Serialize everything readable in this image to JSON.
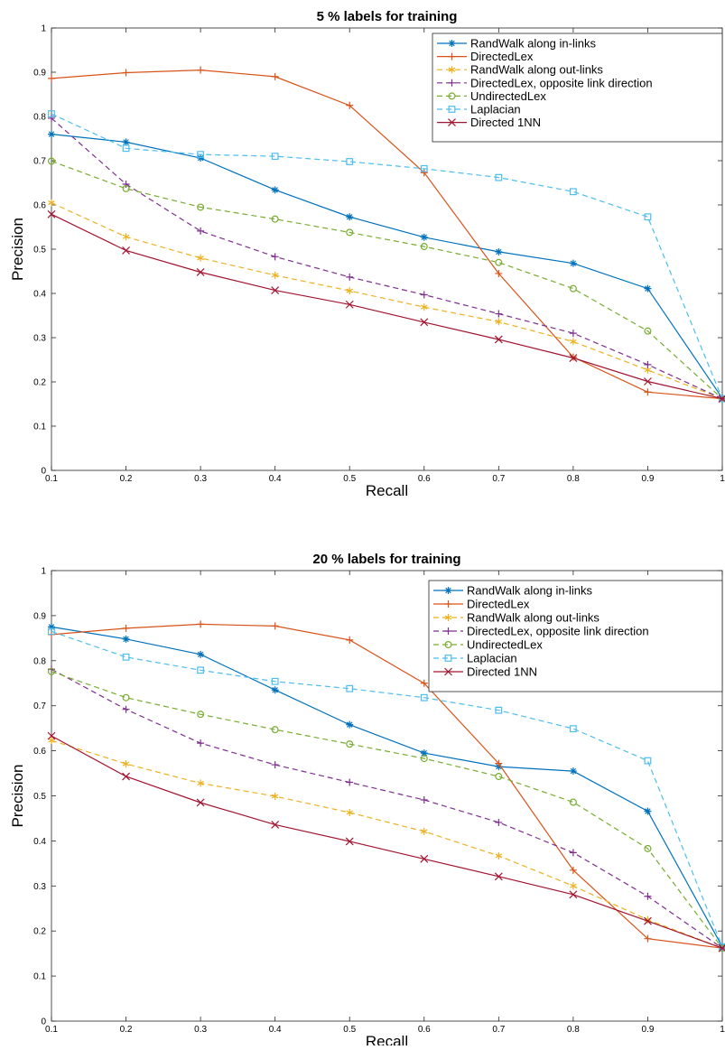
{
  "chart_data": [
    {
      "type": "line",
      "title": "5 % labels for training",
      "xlabel": "Recall",
      "ylabel": "Precision",
      "xlim": [
        0.1,
        1
      ],
      "ylim": [
        0,
        1
      ],
      "xticks": [
        "0.1",
        "0.2",
        "0.3",
        "0.4",
        "0.5",
        "0.6",
        "0.7",
        "0.8",
        "0.9",
        "1"
      ],
      "yticks": [
        "0",
        "0.1",
        "0.2",
        "0.3",
        "0.4",
        "0.5",
        "0.6",
        "0.7",
        "0.8",
        "0.9",
        "1"
      ],
      "grid": false,
      "legend_position": "top-right",
      "x": [
        0.1,
        0.2,
        0.3,
        0.4,
        0.5,
        0.6,
        0.7,
        0.8,
        0.9,
        1.0
      ],
      "series": [
        {
          "name": "RandWalk along in-links",
          "color": "#0072BD",
          "marker": "asterisk",
          "dash": "solid",
          "values": [
            0.76,
            0.742,
            0.706,
            0.634,
            0.573,
            0.527,
            0.494,
            0.468,
            0.411,
            0.163
          ]
        },
        {
          "name": "DirectedLex",
          "color": "#D95319",
          "marker": "plus",
          "dash": "solid",
          "values": [
            0.886,
            0.899,
            0.905,
            0.89,
            0.825,
            0.673,
            0.445,
            0.256,
            0.177,
            0.162
          ]
        },
        {
          "name": "RandWalk along out-links",
          "color": "#EDB120",
          "marker": "star",
          "dash": "dashed",
          "values": [
            0.605,
            0.528,
            0.48,
            0.441,
            0.406,
            0.369,
            0.336,
            0.291,
            0.227,
            0.162
          ]
        },
        {
          "name": "DirectedLex, opposite link direction",
          "color": "#7E2F8E",
          "marker": "plus",
          "dash": "dashed",
          "values": [
            0.796,
            0.647,
            0.541,
            0.483,
            0.437,
            0.397,
            0.354,
            0.31,
            0.239,
            0.162
          ]
        },
        {
          "name": "UndirectedLex",
          "color": "#77AC30",
          "marker": "circle",
          "dash": "dashed",
          "values": [
            0.699,
            0.637,
            0.595,
            0.568,
            0.538,
            0.506,
            0.47,
            0.411,
            0.315,
            0.162
          ]
        },
        {
          "name": "Laplacian",
          "color": "#4DBEEE",
          "marker": "square",
          "dash": "dashed",
          "values": [
            0.806,
            0.728,
            0.714,
            0.71,
            0.698,
            0.682,
            0.662,
            0.63,
            0.573,
            0.162
          ]
        },
        {
          "name": "Directed 1NN",
          "color": "#A2142F",
          "marker": "x",
          "dash": "solid",
          "values": [
            0.579,
            0.497,
            0.448,
            0.407,
            0.375,
            0.335,
            0.296,
            0.254,
            0.201,
            0.162
          ]
        }
      ]
    },
    {
      "type": "line",
      "title": "20 % labels for training",
      "xlabel": "Recall",
      "ylabel": "Precision",
      "xlim": [
        0.1,
        1
      ],
      "ylim": [
        0,
        1
      ],
      "xticks": [
        "0.1",
        "0.2",
        "0.3",
        "0.4",
        "0.5",
        "0.6",
        "0.7",
        "0.8",
        "0.9",
        "1"
      ],
      "yticks": [
        "0",
        "0.1",
        "0.2",
        "0.3",
        "0.4",
        "0.5",
        "0.6",
        "0.7",
        "0.8",
        "0.9",
        "1"
      ],
      "grid": false,
      "legend_position": "top-right",
      "x": [
        0.1,
        0.2,
        0.3,
        0.4,
        0.5,
        0.6,
        0.7,
        0.8,
        0.9,
        1.0
      ],
      "series": [
        {
          "name": "RandWalk along in-links",
          "color": "#0072BD",
          "marker": "asterisk",
          "dash": "solid",
          "values": [
            0.875,
            0.848,
            0.814,
            0.735,
            0.658,
            0.595,
            0.565,
            0.555,
            0.466,
            0.165
          ]
        },
        {
          "name": "DirectedLex",
          "color": "#D95319",
          "marker": "plus",
          "dash": "solid",
          "values": [
            0.858,
            0.872,
            0.881,
            0.877,
            0.846,
            0.75,
            0.572,
            0.335,
            0.183,
            0.162
          ]
        },
        {
          "name": "RandWalk along out-links",
          "color": "#EDB120",
          "marker": "star",
          "dash": "dashed",
          "values": [
            0.623,
            0.571,
            0.528,
            0.499,
            0.463,
            0.421,
            0.367,
            0.3,
            0.225,
            0.162
          ]
        },
        {
          "name": "DirectedLex, opposite link direction",
          "color": "#7E2F8E",
          "marker": "plus",
          "dash": "dashed",
          "values": [
            0.781,
            0.692,
            0.617,
            0.569,
            0.53,
            0.491,
            0.441,
            0.374,
            0.277,
            0.162
          ]
        },
        {
          "name": "UndirectedLex",
          "color": "#77AC30",
          "marker": "circle",
          "dash": "dashed",
          "values": [
            0.776,
            0.718,
            0.681,
            0.647,
            0.615,
            0.583,
            0.543,
            0.486,
            0.383,
            0.162
          ]
        },
        {
          "name": "Laplacian",
          "color": "#4DBEEE",
          "marker": "square",
          "dash": "dashed",
          "values": [
            0.865,
            0.808,
            0.779,
            0.754,
            0.738,
            0.718,
            0.69,
            0.649,
            0.578,
            0.165
          ]
        },
        {
          "name": "Directed 1NN",
          "color": "#A2142F",
          "marker": "x",
          "dash": "solid",
          "values": [
            0.633,
            0.543,
            0.485,
            0.436,
            0.399,
            0.36,
            0.321,
            0.281,
            0.222,
            0.162
          ]
        }
      ]
    }
  ]
}
